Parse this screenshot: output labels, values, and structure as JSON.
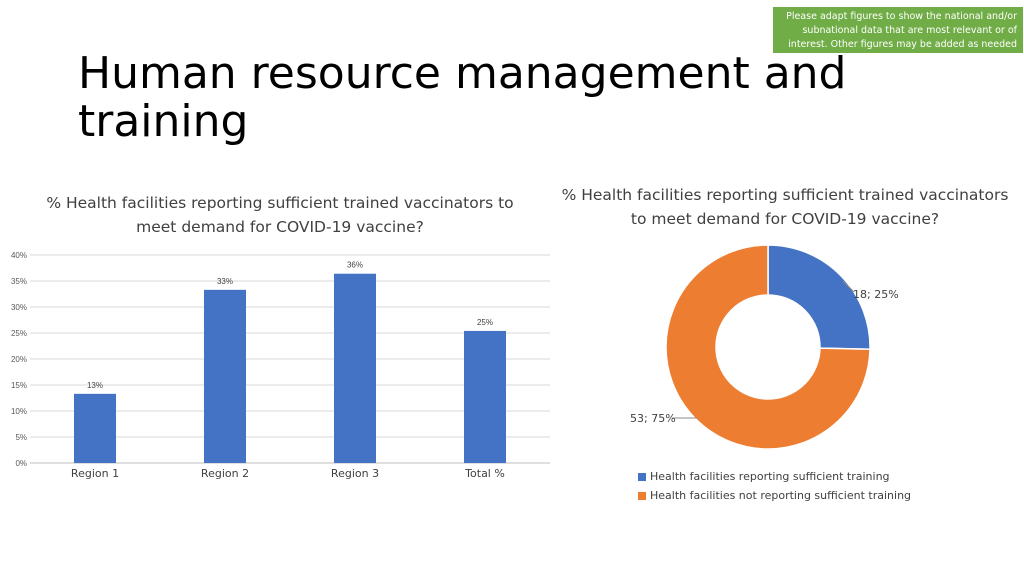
{
  "note": "Please adapt figures to show the national and/or subnational data that are most relevant or of interest. Other figures may be added as needed",
  "title": "Human resource management and training",
  "colors": {
    "note_bg": "#70ad47",
    "blue": "#4472c4",
    "orange": "#ed7d31"
  },
  "chart_data": [
    {
      "type": "bar",
      "title": "% Health facilities reporting sufficient trained vaccinators to meet demand for COVID-19 vaccine?",
      "categories": [
        "Region 1",
        "Region 2",
        "Region 3",
        "Total %"
      ],
      "values": [
        0.133,
        0.333,
        0.364,
        0.254
      ],
      "data_labels": [
        "13%",
        "33%",
        "36%",
        "25%"
      ],
      "y_ticks": [
        "0%",
        "5%",
        "10%",
        "15%",
        "20%",
        "25%",
        "30%",
        "35%",
        "40%"
      ],
      "ylim": [
        0,
        0.4
      ],
      "grid": true
    },
    {
      "type": "pie",
      "hole": true,
      "title": "% Health facilities reporting sufficient trained vaccinators to meet demand for COVID-19 vaccine?",
      "slices": [
        {
          "label": "Health facilities reporting sufficient training",
          "value": 18,
          "data_label": "18; 25%"
        },
        {
          "label": "Health facilities not reporting sufficient training",
          "value": 53,
          "data_label": "53; 75%"
        }
      ],
      "legend_position": "bottom"
    }
  ]
}
